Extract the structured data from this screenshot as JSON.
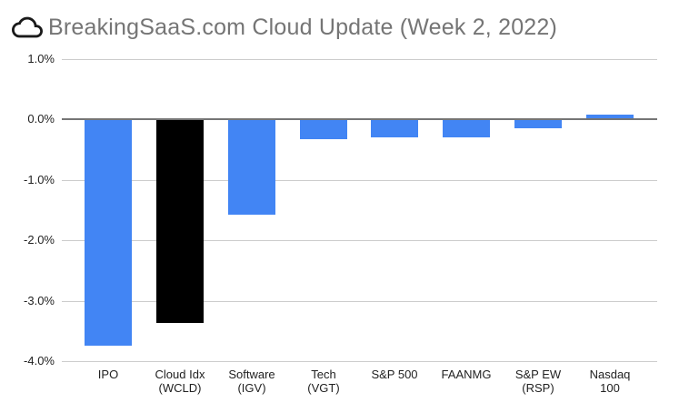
{
  "header": {
    "icon": "cloud-icon",
    "title": "BreakingSaaS.com Cloud Update (Week 2, 2022)"
  },
  "chart_data": {
    "type": "bar",
    "title": "BreakingSaaS.com Cloud Update (Week 2, 2022)",
    "xlabel": "",
    "ylabel": "",
    "ylim": [
      -4.0,
      1.0
    ],
    "grid": true,
    "legend": "none",
    "yticks": [
      1.0,
      0.0,
      -1.0,
      -2.0,
      -3.0,
      -4.0
    ],
    "ytick_labels": [
      "1.0%",
      "0.0%",
      "-1.0%",
      "-2.0%",
      "-3.0%",
      "-4.0%"
    ],
    "categories": [
      "IPO",
      "Cloud Idx (WCLD)",
      "Software (IGV)",
      "Tech (VGT)",
      "S&P 500",
      "FAANMG",
      "S&P EW (RSP)",
      "Nasdaq 100"
    ],
    "category_lines": [
      [
        "IPO"
      ],
      [
        "Cloud Idx",
        "(WCLD)"
      ],
      [
        "Software",
        "(IGV)"
      ],
      [
        "Tech",
        "(VGT)"
      ],
      [
        "S&P 500"
      ],
      [
        "FAANMG"
      ],
      [
        "S&P EW",
        "(RSP)"
      ],
      [
        "Nasdaq",
        "100"
      ]
    ],
    "values": [
      -3.73,
      -3.36,
      -1.57,
      -0.31,
      -0.29,
      -0.28,
      -0.13,
      0.06
    ],
    "bar_colors": [
      "#4285f4",
      "#000000",
      "#4285f4",
      "#4285f4",
      "#4285f4",
      "#4285f4",
      "#4285f4",
      "#4285f4"
    ],
    "colors": {
      "default_bar": "#4285f4",
      "highlight_bar": "#000000",
      "gridline": "#cccccc",
      "zero_line": "#757575",
      "axis_text": "#222222",
      "title_text": "#757575"
    }
  }
}
